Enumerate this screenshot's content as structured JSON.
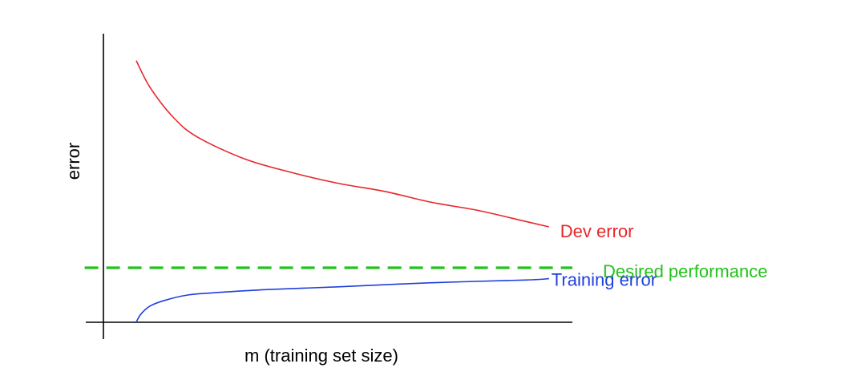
{
  "chart_data": {
    "type": "line",
    "xlabel": "m (training set size)",
    "ylabel": "error",
    "grid": false,
    "series": [
      {
        "name": "Dev error",
        "color": "#e8262a",
        "style": "solid",
        "x": [
          0.07,
          0.1,
          0.15,
          0.2,
          0.3,
          0.4,
          0.5,
          0.6,
          0.7,
          0.8,
          0.9,
          0.95
        ],
        "y": [
          0.96,
          0.86,
          0.75,
          0.68,
          0.6,
          0.55,
          0.51,
          0.48,
          0.44,
          0.41,
          0.37,
          0.35
        ]
      },
      {
        "name": "Desired performance",
        "color": "#22c21a",
        "style": "dashed",
        "x": [
          -0.04,
          1.0
        ],
        "y": [
          0.2,
          0.2
        ]
      },
      {
        "name": "Training error",
        "color": "#1f3fdc",
        "style": "solid",
        "x": [
          0.07,
          0.08,
          0.1,
          0.13,
          0.18,
          0.25,
          0.35,
          0.5,
          0.7,
          0.9,
          0.95
        ],
        "y": [
          0.0,
          0.03,
          0.06,
          0.08,
          0.1,
          0.11,
          0.12,
          0.13,
          0.145,
          0.155,
          0.16
        ]
      }
    ]
  }
}
